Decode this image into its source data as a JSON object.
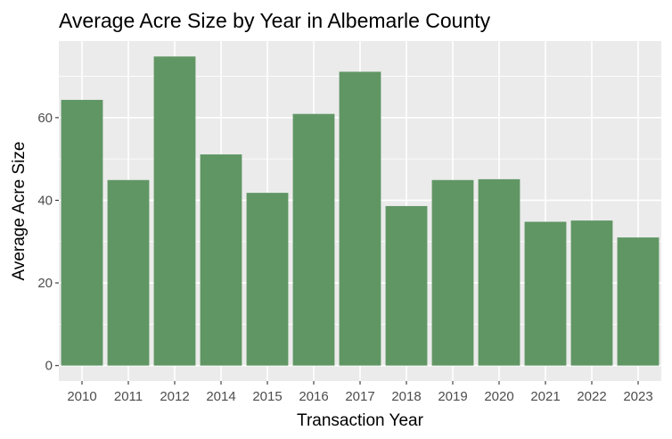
{
  "chart_data": {
    "type": "bar",
    "title": "Average Acre Size by Year in Albemarle County",
    "xlabel": "Transaction Year",
    "ylabel": "Average Acre Size",
    "categories": [
      "2010",
      "2011",
      "2012",
      "2014",
      "2015",
      "2016",
      "2017",
      "2018",
      "2019",
      "2020",
      "2021",
      "2022",
      "2023"
    ],
    "values": [
      64.3,
      44.9,
      74.8,
      51.1,
      41.8,
      60.9,
      71.1,
      38.6,
      44.9,
      45.1,
      34.8,
      35.1,
      31.0
    ],
    "yticks": [
      0,
      20,
      40,
      60
    ],
    "ylim": [
      -3.74,
      78.54
    ],
    "grid": true,
    "legend": "none",
    "colors": {
      "bar": "#609664",
      "panel": "#ebebeb",
      "gridline": "#ffffff",
      "tick": "#333333"
    }
  }
}
